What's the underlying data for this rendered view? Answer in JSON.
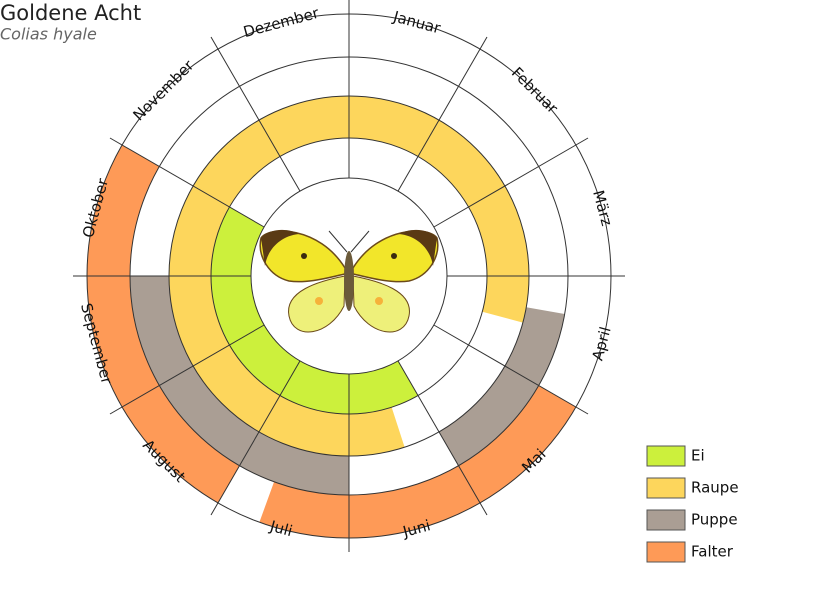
{
  "header": {
    "title": "Goldene Acht",
    "subtitle": "Colias hyale"
  },
  "months": [
    "Januar",
    "Februar",
    "März",
    "April",
    "Mai",
    "Juni",
    "Juli",
    "August",
    "September",
    "Oktober",
    "November",
    "Dezember"
  ],
  "legend": [
    {
      "label": "Ei",
      "color": "#ccf03c"
    },
    {
      "label": "Raupe",
      "color": "#fdd65c"
    },
    {
      "label": "Puppe",
      "color": "#aa9e94"
    },
    {
      "label": "Falter",
      "color": "#fe9a57"
    }
  ]
}
